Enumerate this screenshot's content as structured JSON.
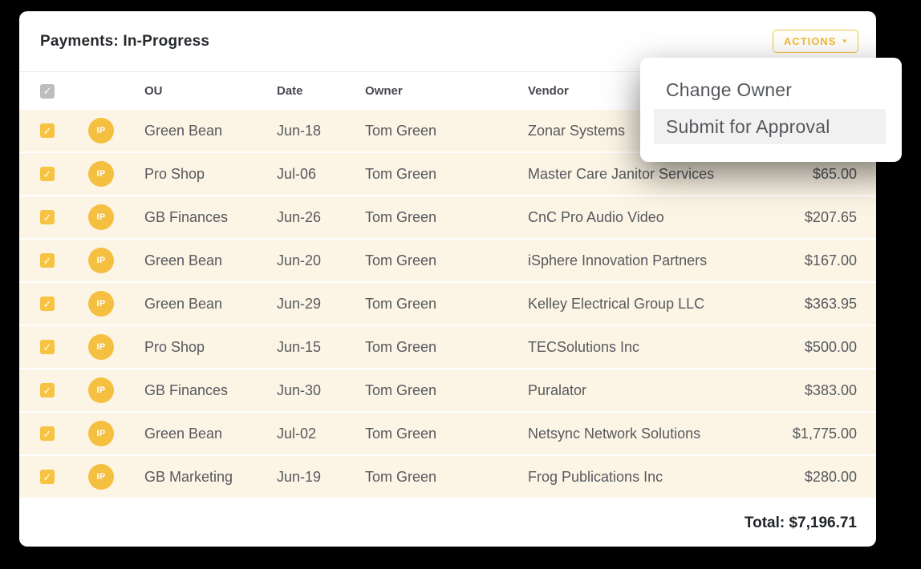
{
  "card": {
    "title": "Payments: In-Progress",
    "actions_button": {
      "label": "ACTIONS",
      "caret": "▾"
    },
    "table": {
      "columns": {
        "ou": "OU",
        "date": "Date",
        "owner": "Owner",
        "vendor": "Vendor"
      },
      "status_badge_label": "IP",
      "checkmark": "✓",
      "rows": [
        {
          "ou": "Green Bean",
          "date": "Jun-18",
          "owner": "Tom Green",
          "vendor": "Zonar Systems",
          "amount": ""
        },
        {
          "ou": "Pro Shop",
          "date": "Jul-06",
          "owner": "Tom Green",
          "vendor": "Master Care Janitor Services",
          "amount": "$65.00"
        },
        {
          "ou": "GB Finances",
          "date": "Jun-26",
          "owner": "Tom Green",
          "vendor": "CnC Pro Audio Video",
          "amount": "$207.65"
        },
        {
          "ou": "Green Bean",
          "date": "Jun-20",
          "owner": "Tom Green",
          "vendor": "iSphere Innovation Partners",
          "amount": "$167.00"
        },
        {
          "ou": "Green Bean",
          "date": "Jun-29",
          "owner": "Tom Green",
          "vendor": "Kelley Electrical Group LLC",
          "amount": "$363.95"
        },
        {
          "ou": "Pro Shop",
          "date": "Jun-15",
          "owner": "Tom Green",
          "vendor": "TECSolutions Inc",
          "amount": "$500.00"
        },
        {
          "ou": "GB Finances",
          "date": "Jun-30",
          "owner": "Tom Green",
          "vendor": "Puralator",
          "amount": "$383.00"
        },
        {
          "ou": "Green Bean",
          "date": "Jul-02",
          "owner": "Tom Green",
          "vendor": "Netsync Network Solutions",
          "amount": "$1,775.00"
        },
        {
          "ou": "GB Marketing",
          "date": "Jun-19",
          "owner": "Tom Green",
          "vendor": "Frog Publications Inc",
          "amount": "$280.00"
        }
      ]
    },
    "total_label": "Total: $7,196.71"
  },
  "dropdown": {
    "items": [
      {
        "label": "Change Owner",
        "highlighted": false
      },
      {
        "label": "Submit for Approval",
        "highlighted": true
      }
    ]
  },
  "colors": {
    "accent_amber": "#f5bf3f",
    "row_background": "#fcf5e6",
    "menu_highlight": "#f1f1f1",
    "header_checkbox_grey": "#bdbdbd"
  }
}
